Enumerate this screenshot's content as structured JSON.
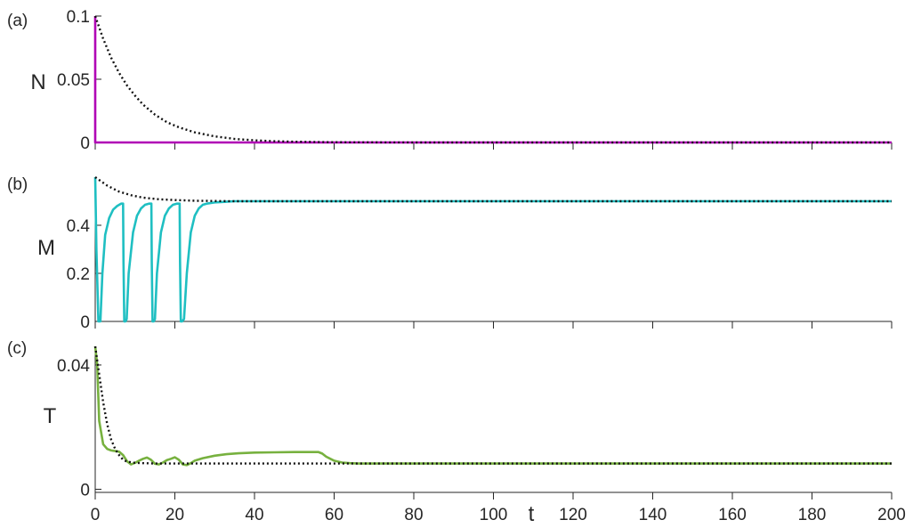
{
  "chart_data": [
    {
      "type": "line",
      "panel_label": "(a)",
      "ylabel": "N",
      "xlim": [
        0,
        200
      ],
      "ylim": [
        0,
        0.1
      ],
      "yticks": [
        0,
        0.05,
        0.1
      ],
      "ytick_labels": [
        "0",
        "0.05",
        "0.1"
      ],
      "xticks": [
        0,
        20,
        40,
        60,
        80,
        100,
        120,
        140,
        160,
        180,
        200
      ],
      "xtick_labels_shown": false,
      "series": [
        {
          "style": "solid",
          "color": "#b000b5",
          "x": [
            0,
            0,
            0.2,
            200
          ],
          "y": [
            0.1,
            0.0,
            0.0,
            0.0
          ]
        },
        {
          "style": "dotted",
          "color": "#111111",
          "x": [
            0,
            2,
            4,
            6,
            8,
            10,
            12,
            15,
            18,
            21,
            25,
            30,
            35,
            40,
            45,
            50,
            60,
            80,
            200
          ],
          "y": [
            0.1,
            0.082,
            0.067,
            0.055,
            0.045,
            0.037,
            0.03,
            0.022,
            0.016,
            0.012,
            0.008,
            0.0048,
            0.0028,
            0.0017,
            0.001,
            0.0006,
            0.0002,
            0.0,
            0.0
          ]
        }
      ]
    },
    {
      "type": "line",
      "panel_label": "(b)",
      "ylabel": "M",
      "xlim": [
        0,
        200
      ],
      "ylim": [
        0,
        0.6
      ],
      "yticks": [
        0,
        0.2,
        0.4
      ],
      "ytick_labels": [
        "0",
        "0.2",
        "0.4"
      ],
      "xticks": [
        0,
        20,
        40,
        60,
        80,
        100,
        120,
        140,
        160,
        180,
        200
      ],
      "xtick_labels_shown": false,
      "series": [
        {
          "style": "solid",
          "color": "#1fbfc2",
          "x": [
            0,
            0.3,
            0.8,
            1.3,
            1.8,
            2.5,
            3.5,
            4.5,
            5.5,
            6.5,
            7,
            7.1,
            7.3,
            7.6,
            7.9,
            8.4,
            9.5,
            10.5,
            11.5,
            12.5,
            13.5,
            14.1,
            14.2,
            14.4,
            14.7,
            15,
            15.5,
            16.5,
            17.5,
            18.5,
            19.5,
            20.5,
            21.2,
            21.3,
            21.5,
            21.8,
            22.3,
            23,
            24,
            25,
            26,
            27,
            28,
            30,
            35,
            45,
            200
          ],
          "y": [
            0.6,
            0.3,
            0.0,
            0.0,
            0.2,
            0.36,
            0.43,
            0.465,
            0.48,
            0.49,
            0.49,
            0.25,
            0.0,
            0.0,
            0.01,
            0.2,
            0.37,
            0.44,
            0.47,
            0.485,
            0.49,
            0.49,
            0.25,
            0.0,
            0.0,
            0.01,
            0.2,
            0.37,
            0.44,
            0.47,
            0.485,
            0.49,
            0.49,
            0.25,
            0.0,
            0.0,
            0.01,
            0.2,
            0.37,
            0.44,
            0.47,
            0.485,
            0.49,
            0.495,
            0.5,
            0.5,
            0.5
          ]
        },
        {
          "style": "dotted",
          "color": "#111111",
          "x": [
            0,
            3,
            6,
            9,
            12,
            16,
            20,
            25,
            30,
            35,
            45,
            60,
            200
          ],
          "y": [
            0.6,
            0.565,
            0.54,
            0.525,
            0.515,
            0.508,
            0.505,
            0.502,
            0.501,
            0.5,
            0.5,
            0.5,
            0.5
          ]
        }
      ]
    },
    {
      "type": "line",
      "panel_label": "(c)",
      "ylabel": "T",
      "xlabel": "t",
      "xlim": [
        0,
        200
      ],
      "ylim": [
        -0.001,
        0.046
      ],
      "yticks": [
        0,
        0.04
      ],
      "ytick_labels": [
        "0",
        "0.04"
      ],
      "xticks": [
        0,
        20,
        40,
        60,
        80,
        100,
        120,
        140,
        160,
        180,
        200
      ],
      "xtick_labels": [
        "0",
        "20",
        "40",
        "60",
        "80",
        "100",
        "120",
        "140",
        "160",
        "180",
        "200"
      ],
      "series": [
        {
          "style": "solid",
          "color": "#77b13f",
          "x": [
            0,
            0.5,
            1,
            2,
            3,
            4,
            5,
            6,
            7,
            8,
            9,
            10,
            11,
            12,
            13,
            14,
            15,
            16,
            17,
            18,
            19,
            20,
            21,
            22,
            23,
            24,
            25,
            27,
            30,
            33,
            36,
            40,
            45,
            50,
            55,
            56,
            57,
            58,
            60,
            62,
            64,
            66,
            70,
            100,
            200
          ],
          "y": [
            0.046,
            0.04,
            0.022,
            0.0145,
            0.013,
            0.0125,
            0.0123,
            0.0121,
            0.011,
            0.009,
            0.008,
            0.0085,
            0.0092,
            0.0098,
            0.0102,
            0.0095,
            0.0082,
            0.008,
            0.0086,
            0.0094,
            0.0098,
            0.0103,
            0.0095,
            0.008,
            0.0078,
            0.0084,
            0.0092,
            0.01,
            0.0108,
            0.0113,
            0.0116,
            0.0118,
            0.0119,
            0.012,
            0.012,
            0.012,
            0.0115,
            0.0105,
            0.0092,
            0.0086,
            0.0084,
            0.0083,
            0.0083,
            0.0083,
            0.0083
          ]
        },
        {
          "style": "dotted",
          "color": "#111111",
          "x": [
            0,
            1,
            2,
            3,
            4,
            5,
            6,
            7,
            8,
            10,
            12,
            15,
            20,
            30,
            200
          ],
          "y": [
            0.046,
            0.037,
            0.028,
            0.021,
            0.016,
            0.013,
            0.011,
            0.0095,
            0.0089,
            0.0085,
            0.0084,
            0.0083,
            0.0083,
            0.0083,
            0.0083
          ]
        }
      ]
    }
  ]
}
